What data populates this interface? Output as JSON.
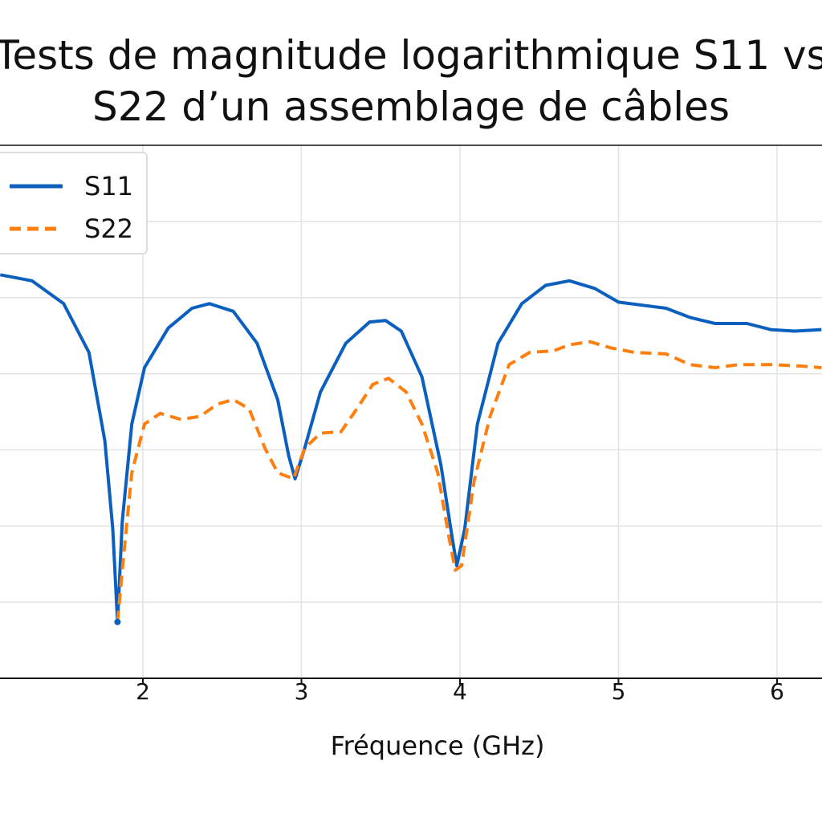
{
  "chart_data": {
    "type": "line",
    "title": [
      "Tests de magnitude logarithmique S11 vs",
      "S22 d’un assemblage de câbles"
    ],
    "xlabel": "Fréquence (GHz)",
    "ylabel": "",
    "xlim": [
      1.1,
      6.28
    ],
    "ylim": [
      -35,
      0
    ],
    "xticks": [
      2,
      3,
      4,
      5,
      6
    ],
    "yticks_grid": [
      -30,
      -25,
      -20,
      -15,
      -10,
      -5
    ],
    "grid": true,
    "legend": "top-left",
    "series": [
      {
        "name": "S11",
        "color": "#0a5fbf",
        "style": "solid",
        "x": [
          1.1,
          1.3,
          1.5,
          1.66,
          1.76,
          1.81,
          1.84,
          1.87,
          1.93,
          2.01,
          2.16,
          2.31,
          2.42,
          2.57,
          2.72,
          2.85,
          2.92,
          2.96,
          3.02,
          3.12,
          3.28,
          3.43,
          3.53,
          3.63,
          3.76,
          3.88,
          3.95,
          3.98,
          4.03,
          4.11,
          4.24,
          4.39,
          4.54,
          4.69,
          4.85,
          5.0,
          5.15,
          5.3,
          5.45,
          5.61,
          5.81,
          5.96,
          6.11,
          6.28
        ],
        "y": [
          -8.5,
          -8.9,
          -10.4,
          -13.6,
          -19.4,
          -25.2,
          -31.3,
          -24.7,
          -18.3,
          -14.6,
          -12.0,
          -10.7,
          -10.4,
          -10.9,
          -13.0,
          -16.7,
          -20.4,
          -21.9,
          -19.9,
          -16.2,
          -13.0,
          -11.6,
          -11.5,
          -12.2,
          -15.2,
          -21.0,
          -25.7,
          -27.6,
          -25.2,
          -18.3,
          -13.0,
          -10.4,
          -9.2,
          -8.9,
          -9.4,
          -10.3,
          -10.5,
          -10.7,
          -11.3,
          -11.7,
          -11.7,
          -12.1,
          -12.2,
          -12.1
        ]
      },
      {
        "name": "S22",
        "color": "#ff7f0e",
        "style": "dashed",
        "x": [
          1.84,
          1.88,
          1.93,
          2.01,
          2.11,
          2.24,
          2.36,
          2.47,
          2.57,
          2.67,
          2.77,
          2.85,
          2.95,
          3.02,
          3.12,
          3.25,
          3.35,
          3.45,
          3.55,
          3.66,
          3.76,
          3.86,
          3.93,
          3.97,
          4.01,
          4.09,
          4.19,
          4.31,
          4.44,
          4.59,
          4.69,
          4.82,
          4.95,
          5.1,
          5.3,
          5.45,
          5.61,
          5.76,
          5.96,
          6.16,
          6.28
        ],
        "y": [
          -31.3,
          -26.8,
          -21.5,
          -18.3,
          -17.6,
          -18.0,
          -17.8,
          -17.0,
          -16.7,
          -17.3,
          -19.9,
          -21.5,
          -21.9,
          -19.9,
          -18.9,
          -18.8,
          -17.3,
          -15.7,
          -15.3,
          -16.2,
          -18.3,
          -21.5,
          -25.7,
          -27.9,
          -27.6,
          -22.0,
          -17.8,
          -14.4,
          -13.6,
          -13.5,
          -13.1,
          -12.9,
          -13.3,
          -13.6,
          -13.7,
          -14.4,
          -14.6,
          -14.4,
          -14.4,
          -14.5,
          -14.6
        ]
      }
    ]
  }
}
